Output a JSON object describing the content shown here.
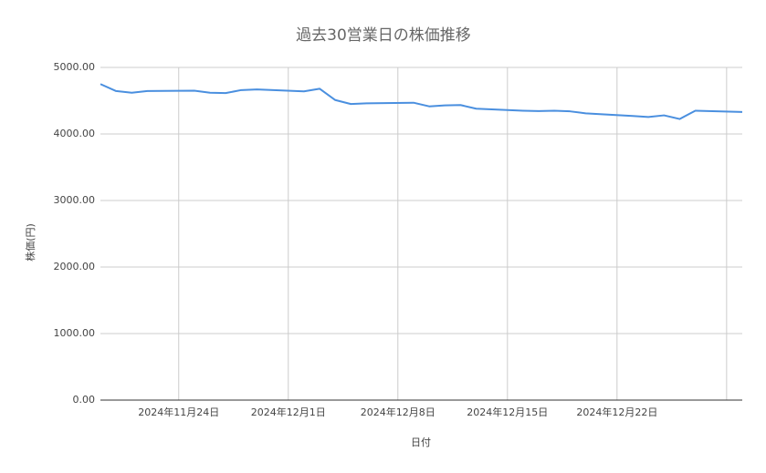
{
  "chart_data": {
    "type": "line",
    "title": "過去30営業日の株価推移",
    "x_label": "日付",
    "y_label": "株価(円)",
    "x": [
      "2024-11-19",
      "2024-11-20",
      "2024-11-21",
      "2024-11-22",
      "2024-11-25",
      "2024-11-26",
      "2024-11-27",
      "2024-11-28",
      "2024-11-29",
      "2024-12-02",
      "2024-12-03",
      "2024-12-04",
      "2024-12-05",
      "2024-12-06",
      "2024-12-09",
      "2024-12-10",
      "2024-12-11",
      "2024-12-12",
      "2024-12-13",
      "2024-12-16",
      "2024-12-17",
      "2024-12-18",
      "2024-12-19",
      "2024-12-20",
      "2024-12-23",
      "2024-12-24",
      "2024-12-25",
      "2024-12-26",
      "2024-12-27",
      "2024-12-30"
    ],
    "series": [
      {
        "name": "株価",
        "color": "#4a8fdf",
        "values": [
          4750,
          4645,
          4620,
          4645,
          4650,
          4620,
          4615,
          4660,
          4670,
          4640,
          4680,
          4510,
          4450,
          4460,
          4470,
          4415,
          4430,
          4435,
          4380,
          4350,
          4345,
          4350,
          4340,
          4310,
          4270,
          4255,
          4280,
          4225,
          4350,
          4330
        ]
      }
    ],
    "xlim": [
      "2024-11-19",
      "2024-12-30"
    ],
    "xticks": [
      {
        "value": "2024-11-24",
        "label": "2024年11月24日"
      },
      {
        "value": "2024-12-01",
        "label": "2024年12月1日"
      },
      {
        "value": "2024-12-08",
        "label": "2024年12月8日"
      },
      {
        "value": "2024-12-15",
        "label": "2024年12月15日"
      },
      {
        "value": "2024-12-22",
        "label": "2024年12月22日"
      },
      {
        "value": "2024-12-29",
        "label": ""
      }
    ],
    "ylim": [
      0,
      5000
    ],
    "yticks": [
      {
        "value": 0,
        "label": "0.00"
      },
      {
        "value": 1000,
        "label": "1000.00"
      },
      {
        "value": 2000,
        "label": "2000.00"
      },
      {
        "value": 3000,
        "label": "3000.00"
      },
      {
        "value": 4000,
        "label": "4000.00"
      },
      {
        "value": 5000,
        "label": "5000.00"
      }
    ],
    "grid": true
  }
}
